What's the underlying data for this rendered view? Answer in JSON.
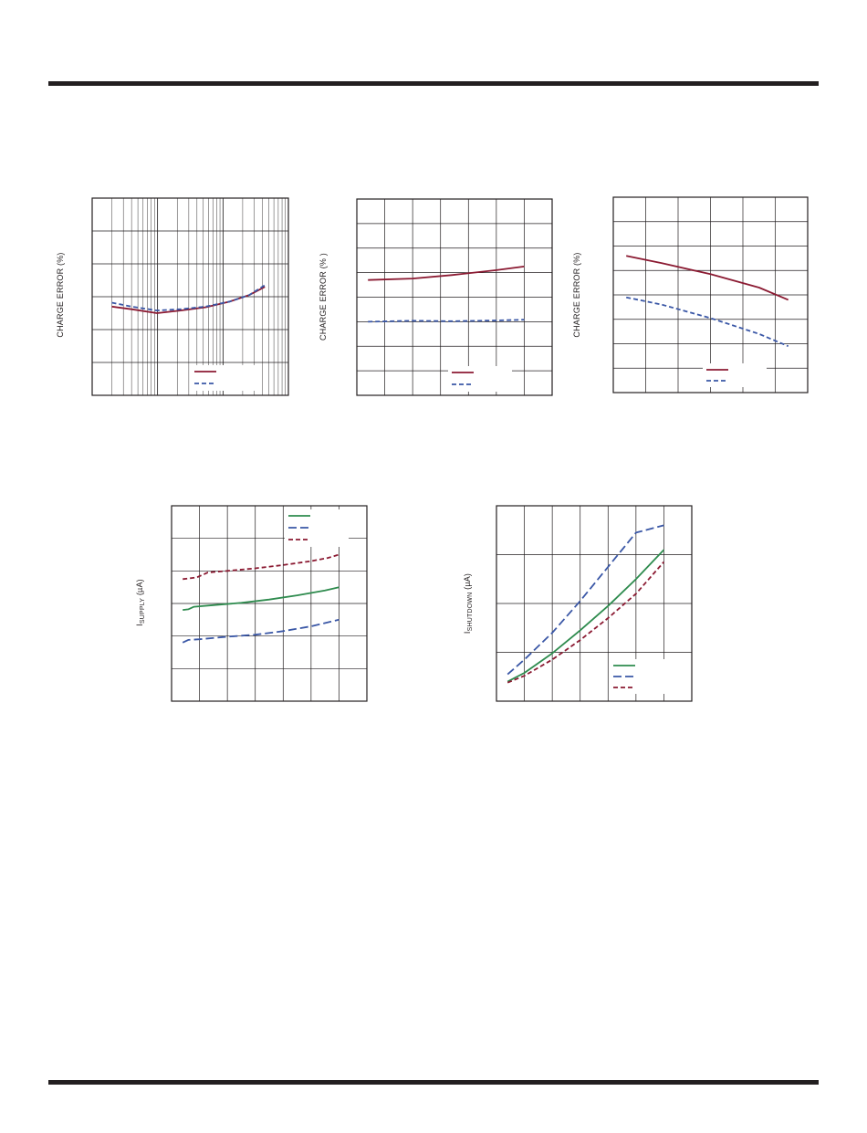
{
  "colors": {
    "ink": "#231f20",
    "red": "#8b1a32",
    "blue": "#3a57a6",
    "green": "#2e8b4e"
  },
  "chart_data": [
    {
      "type": "line",
      "ylabel": "CHARGE ERROR (%)",
      "xscale": "log",
      "grid": true,
      "xlim": [
        0,
        1
      ],
      "ylim": [
        0,
        6
      ],
      "legend": {
        "placement": "bottom-right",
        "entries": 2
      },
      "series": [
        {
          "style": "solid",
          "color": "#8b1a32",
          "x": [
            0.1,
            0.2,
            0.33,
            0.45,
            0.58,
            0.7,
            0.8,
            0.88
          ],
          "y": [
            2.7,
            2.62,
            2.5,
            2.58,
            2.68,
            2.85,
            3.05,
            3.3
          ]
        },
        {
          "style": "dashed",
          "color": "#3a57a6",
          "x": [
            0.1,
            0.2,
            0.33,
            0.45,
            0.58,
            0.7,
            0.8,
            0.88
          ],
          "y": [
            2.82,
            2.7,
            2.58,
            2.62,
            2.7,
            2.85,
            3.05,
            3.35
          ]
        }
      ]
    },
    {
      "type": "line",
      "ylabel": "CHARGE ERROR (% )",
      "grid": true,
      "xlim": [
        0,
        7
      ],
      "ylim": [
        0,
        8
      ],
      "legend": {
        "placement": "bottom-right",
        "entries": 2
      },
      "series": [
        {
          "style": "solid",
          "color": "#8b1a32",
          "x": [
            0.4,
            2,
            3.4,
            5,
            6
          ],
          "y": [
            4.7,
            4.76,
            4.9,
            5.1,
            5.25
          ]
        },
        {
          "style": "dashed",
          "color": "#3a57a6",
          "x": [
            0.4,
            2,
            3.4,
            5,
            6
          ],
          "y": [
            3.0,
            3.04,
            3.02,
            3.05,
            3.08
          ]
        }
      ]
    },
    {
      "type": "line",
      "ylabel": "CHARGE ERROR (%)",
      "grid": true,
      "xlim": [
        0,
        6
      ],
      "ylim": [
        0,
        8
      ],
      "legend": {
        "placement": "bottom-right",
        "entries": 2
      },
      "series": [
        {
          "style": "solid",
          "color": "#8b1a32",
          "x": [
            0.4,
            1.5,
            3.0,
            4.5,
            5.4
          ],
          "y": [
            5.6,
            5.3,
            4.85,
            4.3,
            3.8
          ]
        },
        {
          "style": "dashed",
          "color": "#3a57a6",
          "x": [
            0.4,
            1.5,
            3.0,
            4.5,
            5.4
          ],
          "y": [
            3.9,
            3.6,
            3.05,
            2.4,
            1.9
          ]
        }
      ]
    },
    {
      "type": "line",
      "ylabel": {
        "main": "I",
        "sub": "SUPPLY",
        "tail": " (µA)"
      },
      "grid": true,
      "xlim": [
        0,
        7
      ],
      "ylim": [
        0,
        6
      ],
      "legend": {
        "placement": "top-right",
        "entries": 3
      },
      "series": [
        {
          "style": "solid",
          "color": "#2e8b4e",
          "x": [
            0.4,
            0.6,
            0.8,
            1.5,
            2.5,
            3.5,
            4.5,
            5.5,
            6.0
          ],
          "y": [
            2.8,
            2.82,
            2.9,
            2.95,
            3.02,
            3.12,
            3.25,
            3.4,
            3.5
          ]
        },
        {
          "style": "longdash",
          "color": "#3a57a6",
          "x": [
            0.4,
            0.6,
            1.0,
            2.0,
            3.0,
            4.0,
            5.0,
            6.0
          ],
          "y": [
            1.8,
            1.88,
            1.9,
            1.98,
            2.04,
            2.15,
            2.3,
            2.5
          ]
        },
        {
          "style": "dashed",
          "color": "#8b1a32",
          "x": [
            0.4,
            0.9,
            1.3,
            2.0,
            3.0,
            4.0,
            5.0,
            5.6,
            6.0
          ],
          "y": [
            3.75,
            3.8,
            3.95,
            4.0,
            4.08,
            4.18,
            4.3,
            4.4,
            4.5
          ]
        }
      ]
    },
    {
      "type": "line",
      "ylabel": {
        "main": "I",
        "sub": "SHUTDOWN",
        "tail": " (µA)"
      },
      "grid": true,
      "xlim": [
        0,
        7
      ],
      "ylim": [
        0,
        4
      ],
      "legend": {
        "placement": "bottom-right",
        "entries": 3
      },
      "series": [
        {
          "style": "solid",
          "color": "#2e8b4e",
          "x": [
            0.4,
            1,
            2,
            3,
            4,
            5,
            6
          ],
          "y": [
            0.4,
            0.58,
            0.98,
            1.45,
            1.95,
            2.5,
            3.1
          ]
        },
        {
          "style": "longdash",
          "color": "#3a57a6",
          "x": [
            0.4,
            1,
            2,
            3,
            4,
            5,
            6
          ],
          "y": [
            0.55,
            0.85,
            1.4,
            2.05,
            2.75,
            3.45,
            3.6
          ]
        },
        {
          "style": "dashed",
          "color": "#8b1a32",
          "x": [
            0.4,
            1,
            2,
            3,
            4,
            5,
            6
          ],
          "y": [
            0.38,
            0.52,
            0.85,
            1.25,
            1.7,
            2.2,
            2.85
          ]
        }
      ]
    }
  ]
}
